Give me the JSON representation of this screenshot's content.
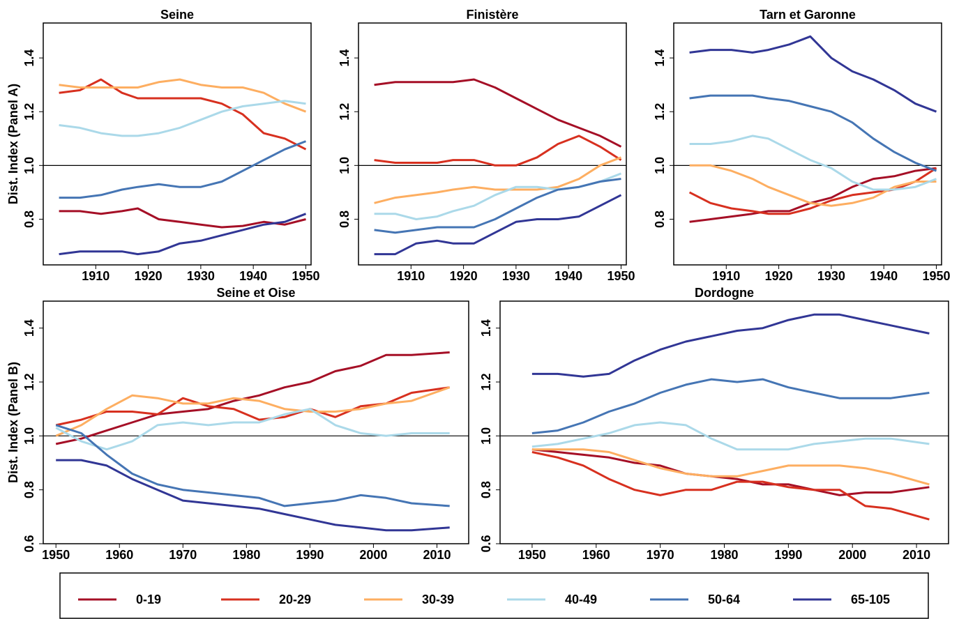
{
  "chart_data": [
    {
      "type": "line",
      "title": "Seine",
      "ylabel": "Dist. Index (Panel A)",
      "x": [
        1903,
        1907,
        1911,
        1915,
        1918,
        1922,
        1926,
        1930,
        1934,
        1938,
        1942,
        1946,
        1950
      ],
      "xlim": [
        1900,
        1951
      ],
      "xticks": [
        1910,
        1920,
        1930,
        1940,
        1950
      ],
      "ylim": [
        0.63,
        1.53
      ],
      "yticks": [
        0.8,
        {
          "value": 1,
          "label": "1.0"
        },
        1.2,
        1.4
      ],
      "refline": 1,
      "series": [
        {
          "name": "0-19",
          "color": "#a50f26",
          "values": [
            0.83,
            0.83,
            0.82,
            0.83,
            0.84,
            0.8,
            0.79,
            0.78,
            0.77,
            0.775,
            0.79,
            0.78,
            0.8
          ]
        },
        {
          "name": "20-29",
          "color": "#d7301f",
          "values": [
            1.27,
            1.28,
            1.32,
            1.27,
            1.25,
            1.25,
            1.25,
            1.25,
            1.23,
            1.19,
            1.12,
            1.1,
            1.06
          ]
        },
        {
          "name": "30-39",
          "color": "#fdae61",
          "values": [
            1.3,
            1.29,
            1.29,
            1.29,
            1.29,
            1.31,
            1.32,
            1.3,
            1.29,
            1.29,
            1.27,
            1.23,
            1.2
          ]
        },
        {
          "name": "40-49",
          "color": "#abd9e9",
          "values": [
            1.15,
            1.14,
            1.12,
            1.11,
            1.11,
            1.12,
            1.14,
            1.17,
            1.2,
            1.22,
            1.23,
            1.24,
            1.23
          ]
        },
        {
          "name": "50-64",
          "color": "#4575b4",
          "values": [
            0.88,
            0.88,
            0.89,
            0.91,
            0.92,
            0.93,
            0.92,
            0.92,
            0.94,
            0.98,
            1.02,
            1.06,
            1.09
          ]
        },
        {
          "name": "65-105",
          "color": "#313695",
          "values": [
            0.67,
            0.68,
            0.68,
            0.68,
            0.67,
            0.68,
            0.71,
            0.72,
            0.74,
            0.76,
            0.78,
            0.79,
            0.82
          ]
        }
      ]
    },
    {
      "type": "line",
      "title": "Finistère",
      "x": [
        1903,
        1907,
        1911,
        1915,
        1918,
        1922,
        1926,
        1930,
        1934,
        1938,
        1942,
        1946,
        1950
      ],
      "xlim": [
        1900,
        1951
      ],
      "xticks": [
        1910,
        1920,
        1930,
        1940,
        1950
      ],
      "ylim": [
        0.63,
        1.53
      ],
      "yticks": [
        0.8,
        {
          "value": 1,
          "label": "1.0"
        },
        1.2,
        1.4
      ],
      "refline": 1,
      "series": [
        {
          "name": "0-19",
          "color": "#a50f26",
          "values": [
            1.3,
            1.31,
            1.31,
            1.31,
            1.31,
            1.32,
            1.29,
            1.25,
            1.21,
            1.17,
            1.14,
            1.11,
            1.07
          ]
        },
        {
          "name": "20-29",
          "color": "#d7301f",
          "values": [
            1.02,
            1.01,
            1.01,
            1.01,
            1.02,
            1.02,
            1.0,
            1.0,
            1.03,
            1.08,
            1.11,
            1.07,
            1.02
          ]
        },
        {
          "name": "30-39",
          "color": "#fdae61",
          "values": [
            0.86,
            0.88,
            0.89,
            0.9,
            0.91,
            0.92,
            0.91,
            0.91,
            0.91,
            0.92,
            0.95,
            1.0,
            1.03
          ]
        },
        {
          "name": "40-49",
          "color": "#abd9e9",
          "values": [
            0.82,
            0.82,
            0.8,
            0.81,
            0.83,
            0.85,
            0.89,
            0.92,
            0.92,
            0.91,
            0.92,
            0.94,
            0.97
          ]
        },
        {
          "name": "50-64",
          "color": "#4575b4",
          "values": [
            0.76,
            0.75,
            0.76,
            0.77,
            0.77,
            0.77,
            0.8,
            0.84,
            0.88,
            0.91,
            0.92,
            0.94,
            0.95
          ]
        },
        {
          "name": "65-105",
          "color": "#313695",
          "values": [
            0.67,
            0.67,
            0.71,
            0.72,
            0.71,
            0.71,
            0.75,
            0.79,
            0.8,
            0.8,
            0.81,
            0.85,
            0.89
          ]
        }
      ]
    },
    {
      "type": "line",
      "title": "Tarn et Garonne",
      "x": [
        1903,
        1907,
        1911,
        1915,
        1918,
        1922,
        1926,
        1930,
        1934,
        1938,
        1942,
        1946,
        1950
      ],
      "xlim": [
        1900,
        1951
      ],
      "xticks": [
        1910,
        1920,
        1930,
        1940,
        1950
      ],
      "ylim": [
        0.63,
        1.53
      ],
      "yticks": [
        0.8,
        {
          "value": 1,
          "label": "1.0"
        },
        1.2,
        1.4
      ],
      "refline": 1,
      "series": [
        {
          "name": "0-19",
          "color": "#a50f26",
          "values": [
            0.79,
            0.8,
            0.81,
            0.82,
            0.83,
            0.83,
            0.86,
            0.88,
            0.92,
            0.95,
            0.96,
            0.98,
            0.99
          ]
        },
        {
          "name": "20-29",
          "color": "#d7301f",
          "values": [
            0.9,
            0.86,
            0.84,
            0.83,
            0.82,
            0.82,
            0.84,
            0.87,
            0.89,
            0.9,
            0.91,
            0.94,
            0.99
          ]
        },
        {
          "name": "30-39",
          "color": "#fdae61",
          "values": [
            1.0,
            1.0,
            0.98,
            0.95,
            0.92,
            0.89,
            0.86,
            0.85,
            0.86,
            0.88,
            0.92,
            0.94,
            0.94
          ]
        },
        {
          "name": "40-49",
          "color": "#abd9e9",
          "values": [
            1.08,
            1.08,
            1.09,
            1.11,
            1.1,
            1.06,
            1.02,
            0.99,
            0.94,
            0.91,
            0.91,
            0.92,
            0.95
          ]
        },
        {
          "name": "50-64",
          "color": "#4575b4",
          "values": [
            1.25,
            1.26,
            1.26,
            1.26,
            1.25,
            1.24,
            1.22,
            1.2,
            1.16,
            1.1,
            1.05,
            1.01,
            0.98
          ]
        },
        {
          "name": "65-105",
          "color": "#313695",
          "values": [
            1.42,
            1.43,
            1.43,
            1.42,
            1.43,
            1.45,
            1.48,
            1.4,
            1.35,
            1.32,
            1.28,
            1.23,
            1.2
          ]
        }
      ]
    },
    {
      "type": "line",
      "title": "Seine et Oise",
      "ylabel": "Dist. Index (Panel B)",
      "x": [
        1950,
        1954,
        1958,
        1962,
        1966,
        1970,
        1974,
        1978,
        1982,
        1986,
        1990,
        1994,
        1998,
        2002,
        2006,
        2012
      ],
      "xlim": [
        1948,
        2015
      ],
      "xticks": [
        1950,
        1960,
        1970,
        1980,
        1990,
        2000,
        2010
      ],
      "ylim": [
        0.6,
        1.5
      ],
      "yticks": [
        0.6,
        0.8,
        {
          "value": 1,
          "label": "1.0"
        },
        1.2,
        1.4
      ],
      "refline": 1,
      "series": [
        {
          "name": "0-19",
          "color": "#a50f26",
          "values": [
            0.97,
            0.99,
            1.02,
            1.05,
            1.08,
            1.09,
            1.1,
            1.13,
            1.15,
            1.18,
            1.2,
            1.24,
            1.26,
            1.3,
            1.3,
            1.31
          ]
        },
        {
          "name": "20-29",
          "color": "#d7301f",
          "values": [
            1.04,
            1.06,
            1.09,
            1.09,
            1.08,
            1.14,
            1.11,
            1.1,
            1.06,
            1.07,
            1.1,
            1.07,
            1.11,
            1.12,
            1.16,
            1.18
          ]
        },
        {
          "name": "30-39",
          "color": "#fdae61",
          "values": [
            1.0,
            1.04,
            1.1,
            1.15,
            1.14,
            1.12,
            1.12,
            1.14,
            1.13,
            1.1,
            1.09,
            1.09,
            1.1,
            1.12,
            1.13,
            1.18
          ]
        },
        {
          "name": "40-49",
          "color": "#abd9e9",
          "values": [
            1.03,
            0.98,
            0.95,
            0.98,
            1.04,
            1.05,
            1.04,
            1.05,
            1.05,
            1.08,
            1.1,
            1.04,
            1.01,
            1.0,
            1.01,
            1.01
          ]
        },
        {
          "name": "50-64",
          "color": "#4575b4",
          "values": [
            1.04,
            1.01,
            0.93,
            0.86,
            0.82,
            0.8,
            0.79,
            0.78,
            0.77,
            0.74,
            0.75,
            0.76,
            0.78,
            0.77,
            0.75,
            0.74
          ]
        },
        {
          "name": "65-105",
          "color": "#313695",
          "values": [
            0.91,
            0.91,
            0.89,
            0.84,
            0.8,
            0.76,
            0.75,
            0.74,
            0.73,
            0.71,
            0.69,
            0.67,
            0.66,
            0.65,
            0.65,
            0.66
          ]
        }
      ]
    },
    {
      "type": "line",
      "title": "Dordogne",
      "x": [
        1950,
        1954,
        1958,
        1962,
        1966,
        1970,
        1974,
        1978,
        1982,
        1986,
        1990,
        1994,
        1998,
        2002,
        2006,
        2012
      ],
      "xlim": [
        1945,
        2015
      ],
      "xticks": [
        1950,
        1960,
        1970,
        1980,
        1990,
        2000,
        2010
      ],
      "ylim": [
        0.6,
        1.5
      ],
      "yticks": [
        0.6,
        0.8,
        {
          "value": 1,
          "label": "1.0"
        },
        1.2,
        1.4
      ],
      "refline": 1,
      "series": [
        {
          "name": "0-19",
          "color": "#a50f26",
          "values": [
            0.95,
            0.94,
            0.93,
            0.92,
            0.9,
            0.89,
            0.86,
            0.85,
            0.84,
            0.82,
            0.82,
            0.8,
            0.78,
            0.79,
            0.79,
            0.81
          ]
        },
        {
          "name": "20-29",
          "color": "#d7301f",
          "values": [
            0.94,
            0.92,
            0.89,
            0.84,
            0.8,
            0.78,
            0.8,
            0.8,
            0.83,
            0.83,
            0.81,
            0.8,
            0.8,
            0.74,
            0.73,
            0.69
          ]
        },
        {
          "name": "30-39",
          "color": "#fdae61",
          "values": [
            0.95,
            0.95,
            0.95,
            0.94,
            0.91,
            0.88,
            0.86,
            0.85,
            0.85,
            0.87,
            0.89,
            0.89,
            0.89,
            0.88,
            0.86,
            0.82
          ]
        },
        {
          "name": "40-49",
          "color": "#abd9e9",
          "values": [
            0.96,
            0.97,
            0.99,
            1.01,
            1.04,
            1.05,
            1.04,
            0.99,
            0.95,
            0.95,
            0.95,
            0.97,
            0.98,
            0.99,
            0.99,
            0.97
          ]
        },
        {
          "name": "50-64",
          "color": "#4575b4",
          "values": [
            1.01,
            1.02,
            1.05,
            1.09,
            1.12,
            1.16,
            1.19,
            1.21,
            1.2,
            1.21,
            1.18,
            1.16,
            1.14,
            1.14,
            1.14,
            1.16
          ]
        },
        {
          "name": "65-105",
          "color": "#313695",
          "values": [
            1.23,
            1.23,
            1.22,
            1.23,
            1.28,
            1.32,
            1.35,
            1.37,
            1.39,
            1.4,
            1.43,
            1.45,
            1.45,
            1.43,
            1.41,
            1.38
          ]
        }
      ]
    }
  ]
}
